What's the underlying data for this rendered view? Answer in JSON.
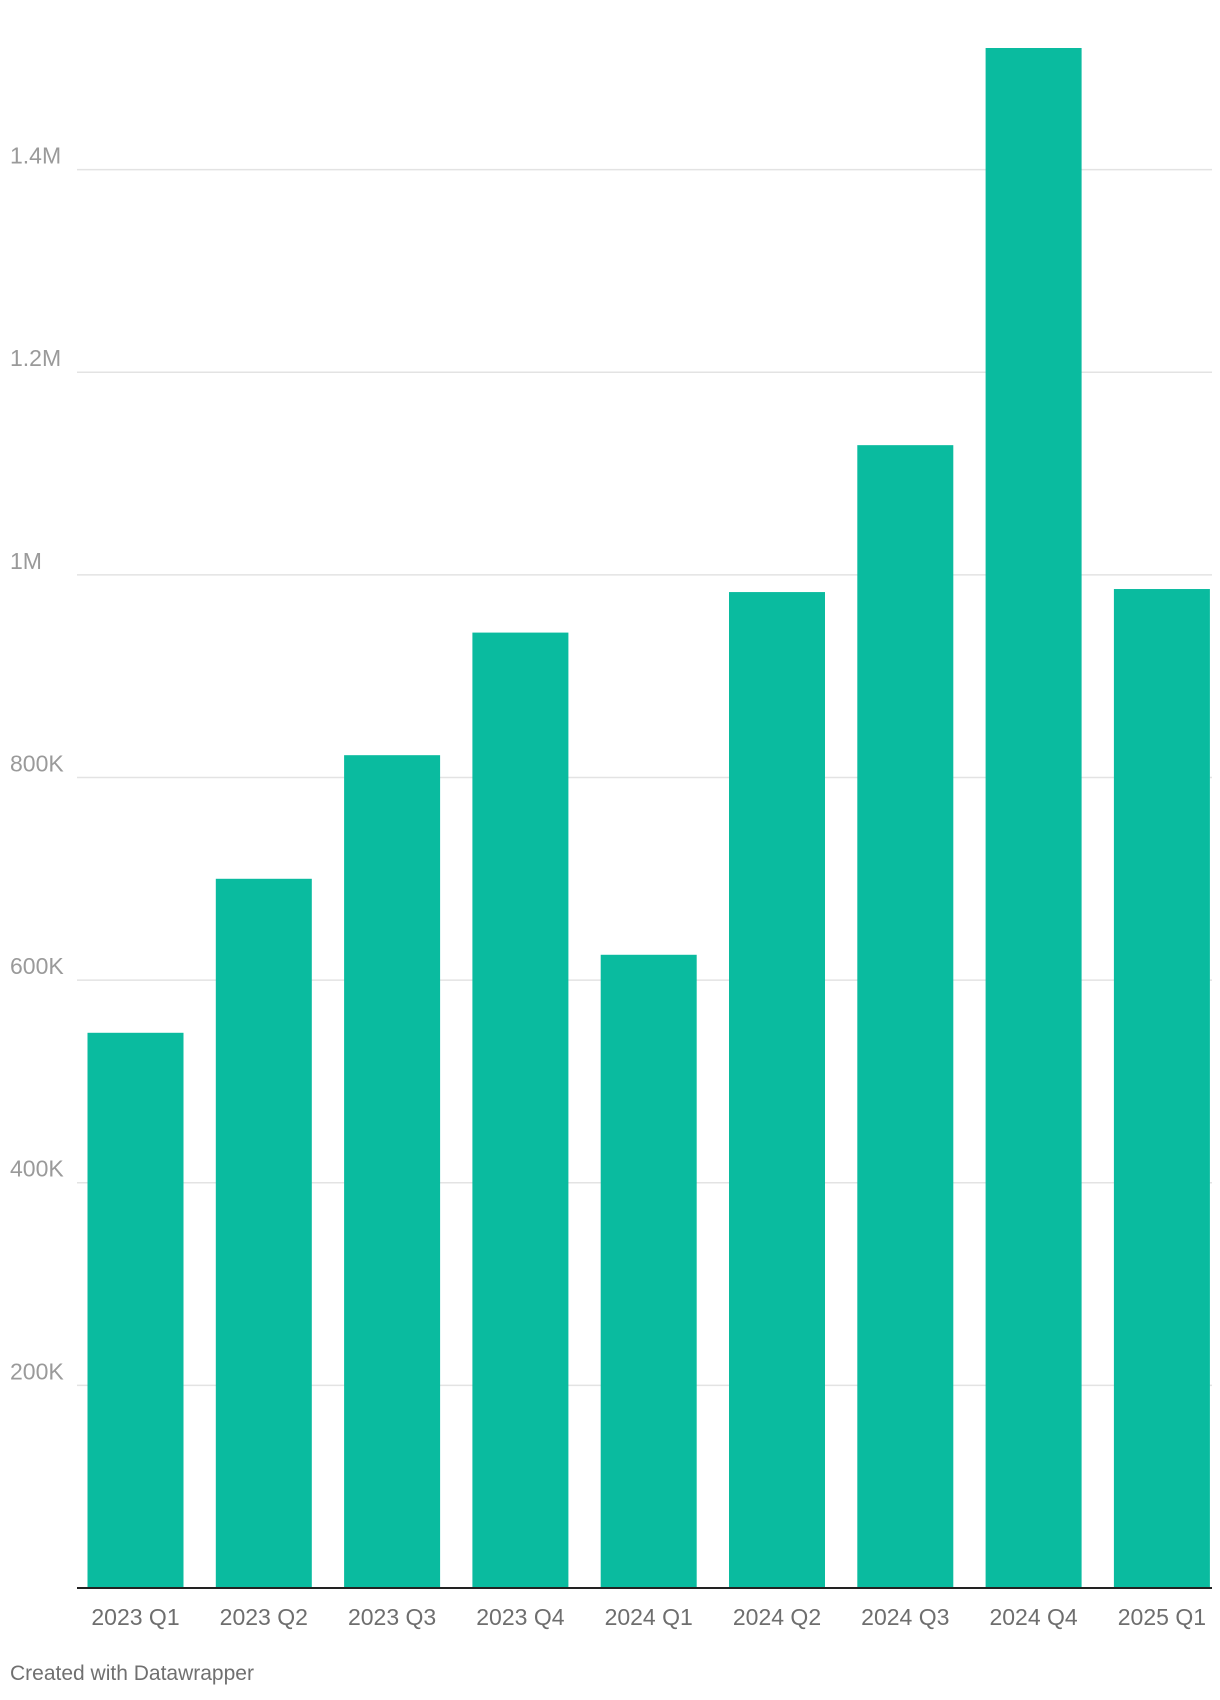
{
  "chart_data": {
    "type": "bar",
    "categories": [
      "2023 Q1",
      "2023 Q2",
      "2023 Q3",
      "2023 Q4",
      "2024 Q1",
      "2024 Q2",
      "2024 Q3",
      "2024 Q4",
      "2025 Q1"
    ],
    "values": [
      548000,
      700000,
      822000,
      943000,
      625000,
      983000,
      1128000,
      1520000,
      986000
    ],
    "title": "",
    "xlabel": "",
    "ylabel": "",
    "ylim": [
      0,
      1520000
    ],
    "yticks": [
      {
        "value": 200000,
        "label": "200K"
      },
      {
        "value": 400000,
        "label": "400K"
      },
      {
        "value": 600000,
        "label": "600K"
      },
      {
        "value": 800000,
        "label": "800K"
      },
      {
        "value": 1000000,
        "label": "1M"
      },
      {
        "value": 1200000,
        "label": "1.2M"
      },
      {
        "value": 1400000,
        "label": "1.4M"
      }
    ],
    "grid": true,
    "legend": "none",
    "bar_color": "#0abb9f",
    "gridline_color": "#e3e3e3",
    "axis_color": "#222222"
  },
  "footer": {
    "credit": "Created with Datawrapper"
  }
}
